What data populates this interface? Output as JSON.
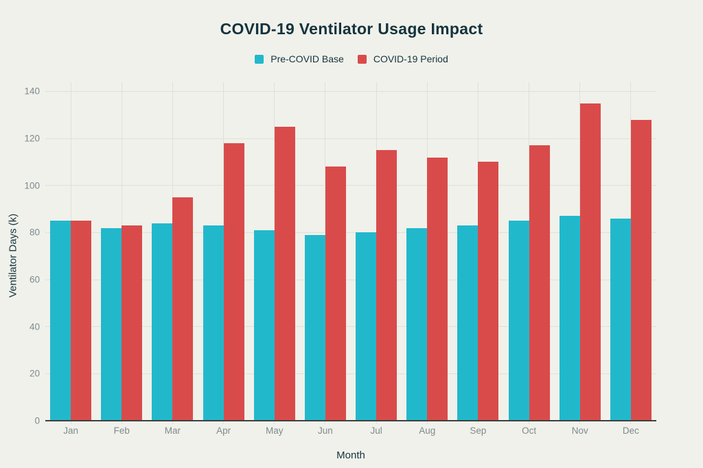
{
  "colors": {
    "background": "#f0f1ea",
    "grid": "#dfe1d7",
    "axis_line": "#3f3f3f",
    "tick_text": "#7e8a90",
    "heading_text": "#14323e",
    "series_teal": "#22b8cc",
    "series_red": "#d94b4b"
  },
  "chart_data": {
    "type": "bar",
    "title": "COVID-19 Ventilator Usage Impact",
    "xlabel": "Month",
    "ylabel": "Ventilator Days (k)",
    "categories": [
      "Jan",
      "Feb",
      "Mar",
      "Apr",
      "May",
      "Jun",
      "Jul",
      "Aug",
      "Sep",
      "Oct",
      "Nov",
      "Dec"
    ],
    "series": [
      {
        "name": "Pre-COVID Base",
        "color": "#22b8cc",
        "values": [
          85,
          82,
          84,
          83,
          81,
          79,
          80,
          82,
          83,
          85,
          87,
          86
        ]
      },
      {
        "name": "COVID-19 Period",
        "color": "#d94b4b",
        "values": [
          85,
          83,
          95,
          118,
          125,
          108,
          115,
          112,
          110,
          117,
          135,
          128
        ]
      }
    ],
    "ylim": [
      0,
      140
    ],
    "ytick_step": 20,
    "grid": true,
    "legend_position": "top"
  }
}
